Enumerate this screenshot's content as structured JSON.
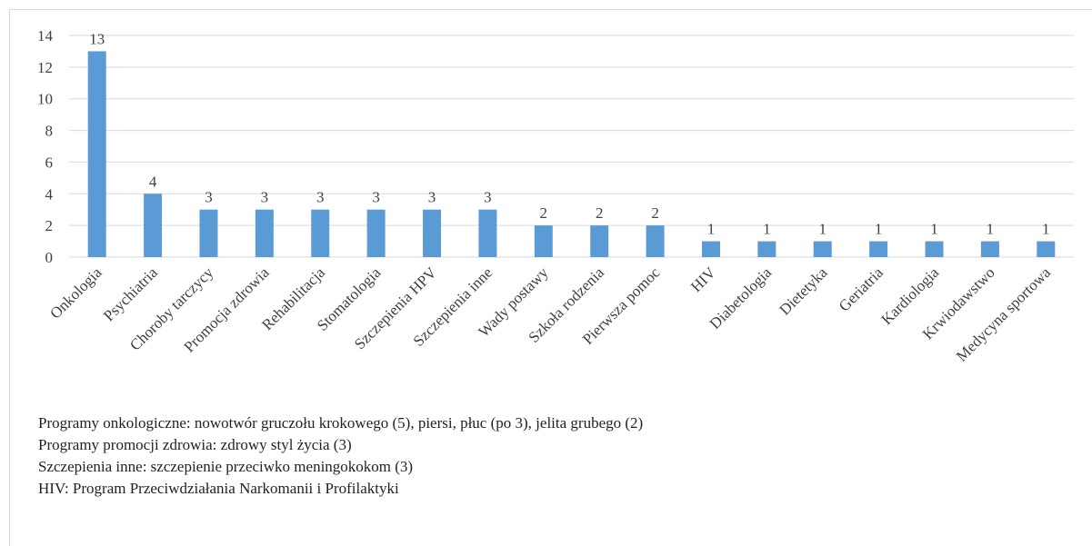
{
  "chart_data": {
    "type": "bar",
    "categories": [
      "Onkologia",
      "Psychiatria",
      "Choroby tarczycy",
      "Promocja zdrowia",
      "Rehabilitacja",
      "Stomatologia",
      "Szczepienia HPV",
      "Szczepienia inne",
      "Wady postawy",
      "Szkoła rodzenia",
      "Pierwsza pomoc",
      "HIV",
      "Diabetologia",
      "Dietetyka",
      "Geriatria",
      "Kardiologia",
      "Krwiodawstwo",
      "Medycyna sportowa"
    ],
    "values": [
      13,
      4,
      3,
      3,
      3,
      3,
      3,
      3,
      2,
      2,
      2,
      1,
      1,
      1,
      1,
      1,
      1,
      1
    ],
    "color": "#5b9bd5",
    "ylim": [
      0,
      14
    ],
    "yticks": [
      0,
      2,
      4,
      6,
      8,
      10,
      12,
      14
    ],
    "grid": true,
    "notes": [
      "Programy onkologiczne: nowotwór gruczołu krokowego (5), piersi, płuc (po 3), jelita grubego (2)",
      "Programy promocji zdrowia: zdrowy styl życia (3)",
      "Szczepienia inne: szczepienie przeciwko meningokokom (3)",
      "HIV: Program Przeciwdziałania Narkomanii i Profilaktyki"
    ]
  }
}
